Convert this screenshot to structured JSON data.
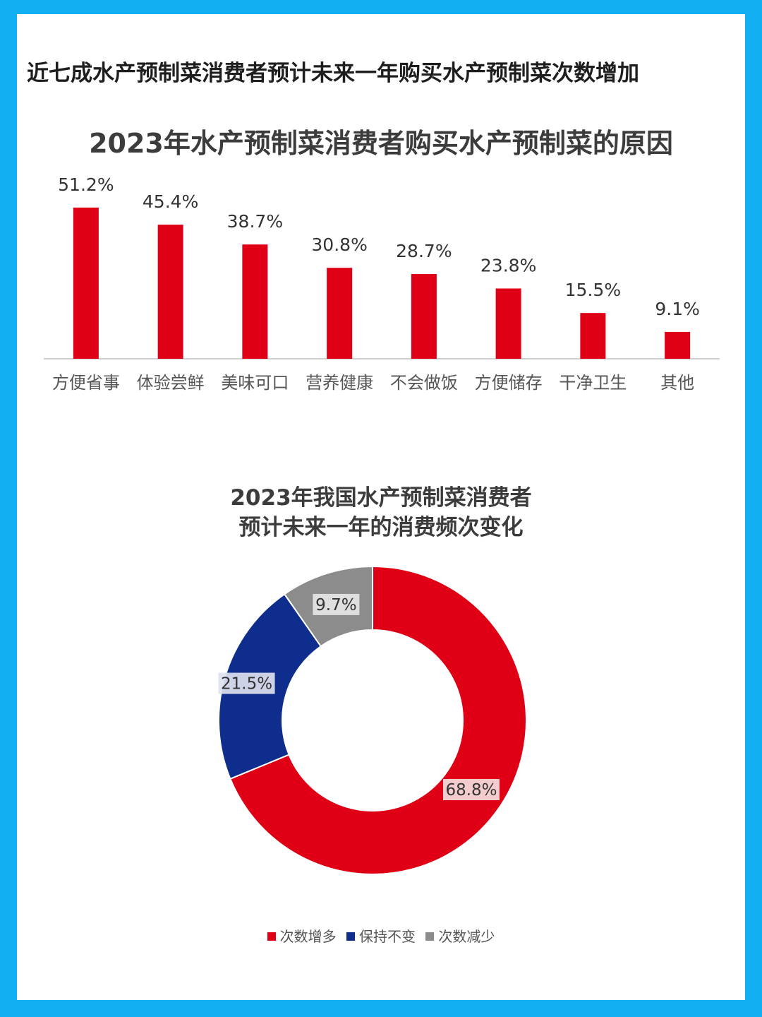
{
  "page": {
    "headline": "近七成水产预制菜消费者预计未来一年购买水产预制菜次数增加"
  },
  "chart_data": [
    {
      "type": "bar",
      "title": "2023年水产预制菜消费者购买水产预制菜的原因",
      "categories": [
        "方便省事",
        "体验尝鲜",
        "美味可口",
        "营养健康",
        "不会做饭",
        "方便储存",
        "干净卫生",
        "其他"
      ],
      "values": [
        51.2,
        45.4,
        38.7,
        30.8,
        28.7,
        23.8,
        15.5,
        9.1
      ],
      "value_labels": [
        "51.2%",
        "45.4%",
        "38.7%",
        "30.8%",
        "28.7%",
        "23.8%",
        "15.5%",
        "9.1%"
      ],
      "unit": "%",
      "color": "#e00016",
      "ylim": [
        0,
        55
      ],
      "grid": false
    },
    {
      "type": "pie",
      "variant": "donut",
      "title_lines": [
        "2023年我国水产预制菜消费者",
        "预计未来一年的消费频次变化"
      ],
      "labels": [
        "次数增多",
        "保持不变",
        "次数减少"
      ],
      "values": [
        68.8,
        21.5,
        9.7
      ],
      "value_labels": [
        "68.8%",
        "21.5%",
        "9.7%"
      ],
      "colors": [
        "#e00016",
        "#0e2d8c",
        "#8c8c8c"
      ],
      "legend_position": "bottom"
    }
  ]
}
